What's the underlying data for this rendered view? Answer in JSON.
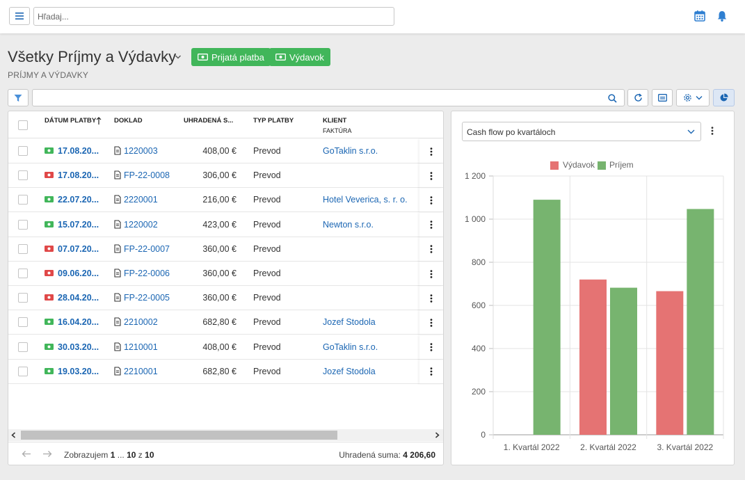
{
  "topbar": {
    "search_placeholder": "Hľadaj..."
  },
  "header": {
    "title": "Všetky Príjmy a Výdavky",
    "subtitle": "PRÍJMY A VÝDAVKY",
    "btn_income": "Prijatá platba",
    "btn_expense": "Výdavok"
  },
  "table": {
    "columns": {
      "date": "DÁTUM PLATBY",
      "doc": "DOKLAD",
      "paid": "UHRADENÁ S...",
      "type": "TYP PLATBY",
      "client": "KLIENT",
      "client_sub": "FAKTÚRA"
    },
    "rows": [
      {
        "kind": "income",
        "date": "17.08.20...",
        "doc": "1220003",
        "amount": "408,00 €",
        "type": "Prevod",
        "client": "GoTaklin s.r.o."
      },
      {
        "kind": "expense",
        "date": "17.08.20...",
        "doc": "FP-22-0008",
        "amount": "306,00 €",
        "type": "Prevod",
        "client": ""
      },
      {
        "kind": "income",
        "date": "22.07.20...",
        "doc": "2220001",
        "amount": "216,00 €",
        "type": "Prevod",
        "client": "Hotel Veverica, s. r. o."
      },
      {
        "kind": "income",
        "date": "15.07.20...",
        "doc": "1220002",
        "amount": "423,00 €",
        "type": "Prevod",
        "client": "Newton s.r.o."
      },
      {
        "kind": "expense",
        "date": "07.07.20...",
        "doc": "FP-22-0007",
        "amount": "360,00 €",
        "type": "Prevod",
        "client": ""
      },
      {
        "kind": "expense",
        "date": "09.06.20...",
        "doc": "FP-22-0006",
        "amount": "360,00 €",
        "type": "Prevod",
        "client": ""
      },
      {
        "kind": "expense",
        "date": "28.04.20...",
        "doc": "FP-22-0005",
        "amount": "360,00 €",
        "type": "Prevod",
        "client": ""
      },
      {
        "kind": "income",
        "date": "16.04.20...",
        "doc": "2210002",
        "amount": "682,80 €",
        "type": "Prevod",
        "client": "Jozef Stodola"
      },
      {
        "kind": "income",
        "date": "30.03.20...",
        "doc": "1210001",
        "amount": "408,00 €",
        "type": "Prevod",
        "client": "GoTaklin s.r.o."
      },
      {
        "kind": "income",
        "date": "19.03.20...",
        "doc": "2210001",
        "amount": "682,80 €",
        "type": "Prevod",
        "client": "Jozef Stodola"
      }
    ],
    "footer": {
      "showing_label": "Zobrazujem",
      "range_from": "1",
      "range_sep": "...",
      "range_to": "10",
      "of_label": "z",
      "total": "10",
      "sum_label": "Uhradená suma:",
      "sum_value": "4 206,60"
    }
  },
  "colors": {
    "income": "#41b65a",
    "expense": "#e04848",
    "link": "#1b66b3",
    "bar_income": "#77b46f",
    "bar_expense": "#e57373"
  },
  "chart_select": "Cash flow po kvartáloch",
  "chart_data": {
    "type": "bar",
    "categories": [
      "1. Kvartál 2022",
      "2. Kvartál 2022",
      "3. Kvartál 2022"
    ],
    "series": [
      {
        "name": "Výdavok",
        "values": [
          0,
          720,
          666
        ]
      },
      {
        "name": "Príjem",
        "values": [
          1090,
          682,
          1047
        ]
      }
    ],
    "yticks": [
      "0",
      "200",
      "400",
      "600",
      "800",
      "1 000",
      "1 200"
    ],
    "ylim": [
      0,
      1200
    ],
    "grid": true,
    "legend": "top-center"
  }
}
